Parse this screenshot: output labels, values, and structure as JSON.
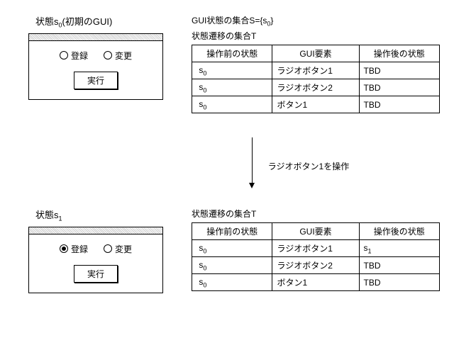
{
  "state0": {
    "label_prefix": "状態s",
    "label_sub": "0",
    "label_suffix": "(初期のGUI)",
    "radio1_label": "登録",
    "radio2_label": "変更",
    "exec_label": "実行"
  },
  "state1": {
    "label_prefix": "状態s",
    "label_sub": "1",
    "radio1_label": "登録",
    "radio2_label": "変更",
    "exec_label": "実行"
  },
  "arrow_label": "ラジオボタン1を操作",
  "right1": {
    "set_S_prefix": "GUI状態の集合S={s",
    "set_S_sub": "0",
    "set_S_suffix": "}",
    "set_T_label": "状態遷移の集合T",
    "headers": {
      "h1": "操作前の状態",
      "h2": "GUI要素",
      "h3": "操作後の状態"
    },
    "rows": [
      {
        "pre_s": "s",
        "pre_sub": "0",
        "elem": "ラジオボタン1",
        "post": "TBD"
      },
      {
        "pre_s": "s",
        "pre_sub": "0",
        "elem": "ラジオボタン2",
        "post": "TBD"
      },
      {
        "pre_s": "s",
        "pre_sub": "0",
        "elem": "ボタン1",
        "post": "TBD"
      }
    ]
  },
  "right2": {
    "set_T_label": "状態遷移の集合T",
    "headers": {
      "h1": "操作前の状態",
      "h2": "GUI要素",
      "h3": "操作後の状態"
    },
    "rows": [
      {
        "pre_s": "s",
        "pre_sub": "0",
        "elem": "ラジオボタン1",
        "post_s": "s",
        "post_sub": "1"
      },
      {
        "pre_s": "s",
        "pre_sub": "0",
        "elem": "ラジオボタン2",
        "post": "TBD"
      },
      {
        "pre_s": "s",
        "pre_sub": "0",
        "elem": "ボタン1",
        "post": "TBD"
      }
    ]
  }
}
